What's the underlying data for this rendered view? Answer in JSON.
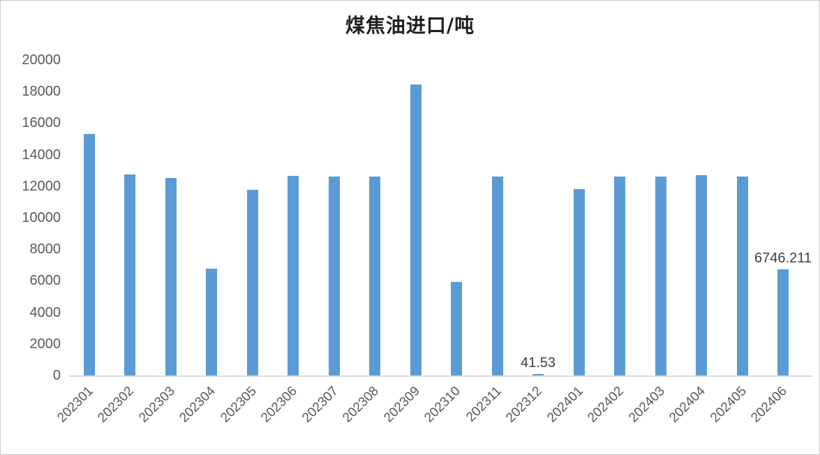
{
  "chart": {
    "title": "煤焦油进口/吨",
    "colors": {
      "bar": "#5B9BD5",
      "axis_line": "#D9D9D9",
      "tick_text": "#595959",
      "data_label": "#404040",
      "frame_border": "#C6C6C6",
      "title_text": "#1F1F1F"
    }
  },
  "chart_data": {
    "type": "bar",
    "title": "煤焦油进口/吨",
    "categories": [
      "202301",
      "202302",
      "202303",
      "202304",
      "202305",
      "202306",
      "202307",
      "202308",
      "202309",
      "202310",
      "202311",
      "202312",
      "202401",
      "202402",
      "202403",
      "202404",
      "202405",
      "202406"
    ],
    "values": [
      15320,
      12750,
      12540,
      6760,
      11780,
      12650,
      12610,
      12630,
      18470,
      5950,
      12630,
      41.53,
      11810,
      12620,
      12600,
      12710,
      12620,
      6746.211
    ],
    "data_labels": {
      "202312": "41.53",
      "202406": "6746.211"
    },
    "xlabel": "",
    "ylabel": "",
    "ylim": [
      0,
      20000
    ],
    "ytick_step": 2000,
    "y_ticks": [
      0,
      2000,
      4000,
      6000,
      8000,
      10000,
      12000,
      14000,
      16000,
      18000,
      20000
    ],
    "grid": "off",
    "legend": "none"
  }
}
